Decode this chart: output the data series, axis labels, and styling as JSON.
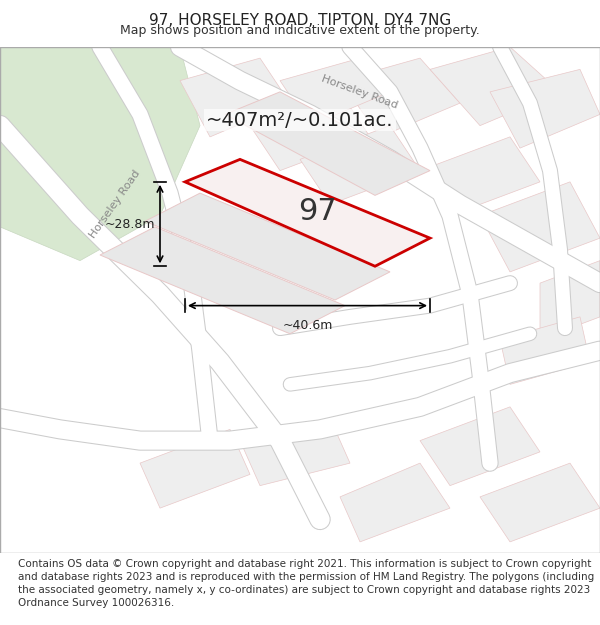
{
  "title": "97, HORSELEY ROAD, TIPTON, DY4 7NG",
  "subtitle": "Map shows position and indicative extent of the property.",
  "area_text": "~407m²/~0.101ac.",
  "property_number": "97",
  "dim_width": "~40.6m",
  "dim_height": "~28.8m",
  "footer": "Contains OS data © Crown copyright and database right 2021. This information is subject to Crown copyright and database rights 2023 and is reproduced with the permission of HM Land Registry. The polygons (including the associated geometry, namely x, y co-ordinates) are subject to Crown copyright and database rights 2023 Ordnance Survey 100026316.",
  "bg_color": "#f0f0f0",
  "map_bg": "#f5f5f0",
  "road_color": "#ffffff",
  "road_outline": "#cccccc",
  "plot_fill": "#f5f5f0",
  "plot_outline": "#e8c8c8",
  "highlight_fill": "#f5f5f0",
  "highlight_outline": "#e00000",
  "green_area": "#d8e8d0",
  "street_label_color": "#888888",
  "title_fontsize": 11,
  "subtitle_fontsize": 9,
  "footer_fontsize": 7.5
}
